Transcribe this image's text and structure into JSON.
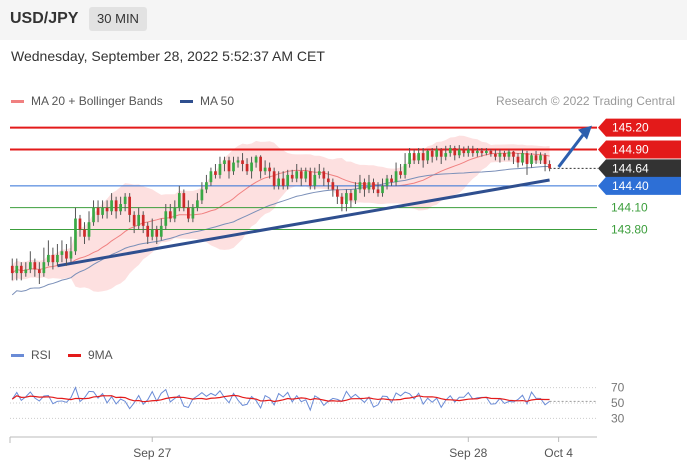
{
  "header": {
    "symbol": "USD/JPY",
    "timeframe": "30 MIN"
  },
  "datetime": "Wednesday, September 28, 2022 5:52:37 AM CET",
  "legend": {
    "ma20": "MA 20 + Bollinger Bands",
    "ma50": "MA 50",
    "ma20_color": "#f08080",
    "ma50_color": "#2f4f8f",
    "credit": "Research © 2022 Trading Central"
  },
  "rsi_legend": {
    "rsi": "RSI",
    "rsi_color": "#6a8bd6",
    "ma9": "9MA",
    "ma9_color": "#e31a1a"
  },
  "levels": [
    {
      "label": "145.20",
      "value": 145.2,
      "color": "#e31a1a",
      "style": "thick",
      "badge": true,
      "text_color": "#ffffff"
    },
    {
      "label": "144.90",
      "value": 144.9,
      "color": "#e31a1a",
      "style": "thick",
      "badge": true,
      "text_color": "#ffffff"
    },
    {
      "label": "144.64",
      "value": 144.64,
      "color": "#333333",
      "style": "dotted",
      "badge": true,
      "text_color": "#ffffff"
    },
    {
      "label": "144.40",
      "value": 144.4,
      "color": "#2d6fd6",
      "style": "thin",
      "badge": true,
      "text_color": "#ffffff"
    },
    {
      "label": "144.10",
      "value": 144.1,
      "color": "#3c9e3c",
      "style": "thin",
      "badge": false,
      "text_color": "#3c9e3c"
    },
    {
      "label": "143.80",
      "value": 143.8,
      "color": "#3c9e3c",
      "style": "thin",
      "badge": false,
      "text_color": "#3c9e3c"
    }
  ],
  "chart_data": {
    "type": "candlestick",
    "instrument": "USD/JPY",
    "interval": "30 MIN",
    "x_ticks": [
      "Sep 27",
      "Sep 28",
      "Oct 4"
    ],
    "x_tick_positions": [
      31,
      101,
      121
    ],
    "ylim": [
      142.28,
      145.47
    ],
    "num_bars": 130,
    "candles": [
      [
        143.3,
        143.2,
        143.4,
        143.1
      ],
      [
        143.2,
        143.3,
        143.4,
        143.1
      ],
      [
        143.3,
        143.2,
        143.35,
        143.1
      ],
      [
        143.2,
        143.25,
        143.35,
        143.15
      ],
      [
        143.25,
        143.35,
        143.5,
        143.2
      ],
      [
        143.35,
        143.25,
        143.4,
        143.15
      ],
      [
        143.25,
        143.2,
        143.35,
        143.05
      ],
      [
        143.2,
        143.35,
        143.55,
        143.15
      ],
      [
        143.35,
        143.45,
        143.65,
        143.3
      ],
      [
        143.45,
        143.35,
        143.55,
        143.25
      ],
      [
        143.35,
        143.45,
        143.6,
        143.3
      ],
      [
        143.45,
        143.5,
        143.65,
        143.35
      ],
      [
        143.5,
        143.4,
        143.6,
        143.3
      ],
      [
        143.4,
        143.5,
        143.7,
        143.35
      ],
      [
        143.5,
        143.95,
        144.1,
        143.45
      ],
      [
        143.95,
        143.8,
        144.0,
        143.7
      ],
      [
        143.8,
        143.7,
        143.9,
        143.6
      ],
      [
        143.7,
        143.9,
        144.05,
        143.65
      ],
      [
        143.9,
        144.1,
        144.2,
        143.85
      ],
      [
        144.1,
        144.0,
        144.2,
        143.9
      ],
      [
        144.0,
        144.1,
        144.2,
        143.95
      ],
      [
        144.1,
        144.05,
        144.2,
        143.95
      ],
      [
        144.05,
        144.2,
        144.3,
        144.0
      ],
      [
        144.2,
        144.05,
        144.25,
        143.95
      ],
      [
        144.05,
        144.15,
        144.25,
        144.0
      ],
      [
        144.15,
        144.25,
        144.3,
        144.05
      ],
      [
        144.25,
        144.0,
        144.3,
        143.9
      ],
      [
        144.0,
        143.85,
        144.05,
        143.75
      ],
      [
        143.85,
        144.0,
        144.1,
        143.8
      ],
      [
        144.0,
        143.85,
        144.05,
        143.75
      ],
      [
        143.85,
        143.7,
        143.9,
        143.6
      ],
      [
        143.7,
        143.8,
        143.95,
        143.65
      ],
      [
        143.8,
        143.7,
        143.85,
        143.6
      ],
      [
        143.7,
        143.85,
        143.95,
        143.65
      ],
      [
        143.85,
        144.05,
        144.15,
        143.8
      ],
      [
        144.05,
        143.95,
        144.15,
        143.9
      ],
      [
        143.95,
        144.1,
        144.2,
        143.9
      ],
      [
        144.1,
        144.3,
        144.4,
        144.05
      ],
      [
        144.3,
        144.1,
        144.35,
        144.05
      ],
      [
        144.1,
        143.95,
        144.2,
        143.9
      ],
      [
        143.95,
        144.1,
        144.15,
        143.9
      ],
      [
        144.1,
        144.2,
        144.3,
        144.05
      ],
      [
        144.2,
        144.35,
        144.45,
        144.15
      ],
      [
        144.35,
        144.45,
        144.55,
        144.3
      ],
      [
        144.45,
        144.6,
        144.65,
        144.4
      ],
      [
        144.6,
        144.55,
        144.7,
        144.5
      ],
      [
        144.55,
        144.7,
        144.8,
        144.5
      ],
      [
        144.7,
        144.75,
        144.8,
        144.6
      ],
      [
        144.75,
        144.6,
        144.8,
        144.5
      ],
      [
        144.6,
        144.72,
        144.8,
        144.55
      ],
      [
        144.72,
        144.75,
        144.8,
        144.65
      ],
      [
        144.75,
        144.7,
        144.85,
        144.6
      ],
      [
        144.7,
        144.6,
        144.78,
        144.55
      ],
      [
        144.6,
        144.72,
        144.8,
        144.5
      ],
      [
        144.72,
        144.8,
        144.82,
        144.65
      ],
      [
        144.8,
        144.6,
        144.82,
        144.5
      ],
      [
        144.6,
        144.65,
        144.75,
        144.55
      ],
      [
        144.65,
        144.6,
        144.72,
        144.5
      ],
      [
        144.6,
        144.4,
        144.65,
        144.35
      ],
      [
        144.4,
        144.5,
        144.6,
        144.35
      ],
      [
        144.5,
        144.4,
        144.6,
        144.35
      ],
      [
        144.4,
        144.55,
        144.62,
        144.35
      ],
      [
        144.55,
        144.5,
        144.62,
        144.45
      ],
      [
        144.5,
        144.6,
        144.7,
        144.45
      ],
      [
        144.6,
        144.5,
        144.65,
        144.4
      ],
      [
        144.5,
        144.6,
        144.65,
        144.45
      ],
      [
        144.6,
        144.4,
        144.65,
        144.35
      ],
      [
        144.4,
        144.55,
        144.65,
        144.35
      ],
      [
        144.55,
        144.6,
        144.7,
        144.5
      ],
      [
        144.6,
        144.5,
        144.65,
        144.4
      ],
      [
        144.5,
        144.45,
        144.6,
        144.35
      ],
      [
        144.45,
        144.35,
        144.5,
        144.25
      ],
      [
        144.35,
        144.25,
        144.4,
        144.15
      ],
      [
        144.25,
        144.15,
        144.3,
        144.05
      ],
      [
        144.15,
        144.3,
        144.35,
        144.05
      ],
      [
        144.3,
        144.2,
        144.35,
        144.1
      ],
      [
        144.2,
        144.35,
        144.45,
        144.15
      ],
      [
        144.35,
        144.45,
        144.55,
        144.3
      ],
      [
        144.45,
        144.35,
        144.5,
        144.25
      ],
      [
        144.35,
        144.45,
        144.55,
        144.3
      ],
      [
        144.45,
        144.35,
        144.5,
        144.3
      ],
      [
        144.35,
        144.3,
        144.45,
        144.25
      ],
      [
        144.3,
        144.4,
        144.5,
        144.25
      ],
      [
        144.4,
        144.5,
        144.55,
        144.35
      ],
      [
        144.5,
        144.45,
        144.55,
        144.4
      ],
      [
        144.45,
        144.6,
        144.72,
        144.4
      ],
      [
        144.6,
        144.55,
        144.7,
        144.5
      ],
      [
        144.55,
        144.7,
        144.85,
        144.5
      ],
      [
        144.7,
        144.85,
        144.92,
        144.65
      ],
      [
        144.85,
        144.75,
        144.9,
        144.7
      ],
      [
        144.75,
        144.85,
        144.92,
        144.7
      ],
      [
        144.85,
        144.75,
        144.92,
        144.65
      ],
      [
        144.75,
        144.88,
        144.9,
        144.7
      ],
      [
        144.88,
        144.8,
        144.92,
        144.72
      ],
      [
        144.8,
        144.9,
        144.95,
        144.75
      ],
      [
        144.9,
        144.8,
        144.92,
        144.7
      ],
      [
        144.8,
        144.85,
        144.95,
        144.75
      ],
      [
        144.85,
        144.92,
        144.96,
        144.8
      ],
      [
        144.92,
        144.82,
        144.95,
        144.75
      ],
      [
        144.82,
        144.9,
        144.96,
        144.78
      ],
      [
        144.9,
        144.85,
        144.94,
        144.8
      ],
      [
        144.85,
        144.9,
        144.95,
        144.8
      ],
      [
        144.9,
        144.85,
        144.95,
        144.8
      ],
      [
        144.85,
        144.88,
        144.92,
        144.8
      ],
      [
        144.88,
        144.85,
        144.92,
        144.8
      ],
      [
        144.85,
        144.88,
        144.92,
        144.82
      ],
      [
        144.88,
        144.84,
        144.9,
        144.8
      ],
      [
        144.84,
        144.8,
        144.9,
        144.75
      ],
      [
        144.8,
        144.85,
        144.9,
        144.72
      ],
      [
        144.85,
        144.8,
        144.88,
        144.75
      ],
      [
        144.8,
        144.87,
        144.9,
        144.75
      ],
      [
        144.87,
        144.8,
        144.88,
        144.7
      ],
      [
        144.8,
        144.72,
        144.85,
        144.65
      ],
      [
        144.72,
        144.85,
        144.9,
        144.68
      ],
      [
        144.85,
        144.7,
        144.88,
        144.55
      ],
      [
        144.7,
        144.82,
        144.85,
        144.65
      ],
      [
        144.82,
        144.75,
        144.88,
        144.7
      ],
      [
        144.75,
        144.82,
        144.86,
        144.7
      ],
      [
        144.82,
        144.7,
        144.85,
        144.6
      ],
      [
        144.7,
        144.64,
        144.75,
        144.6
      ]
    ]
  },
  "rsi_chart": {
    "labels": [
      "70",
      "50",
      "30"
    ],
    "levels": [
      70,
      50,
      30
    ],
    "ylim": [
      20,
      80
    ]
  }
}
